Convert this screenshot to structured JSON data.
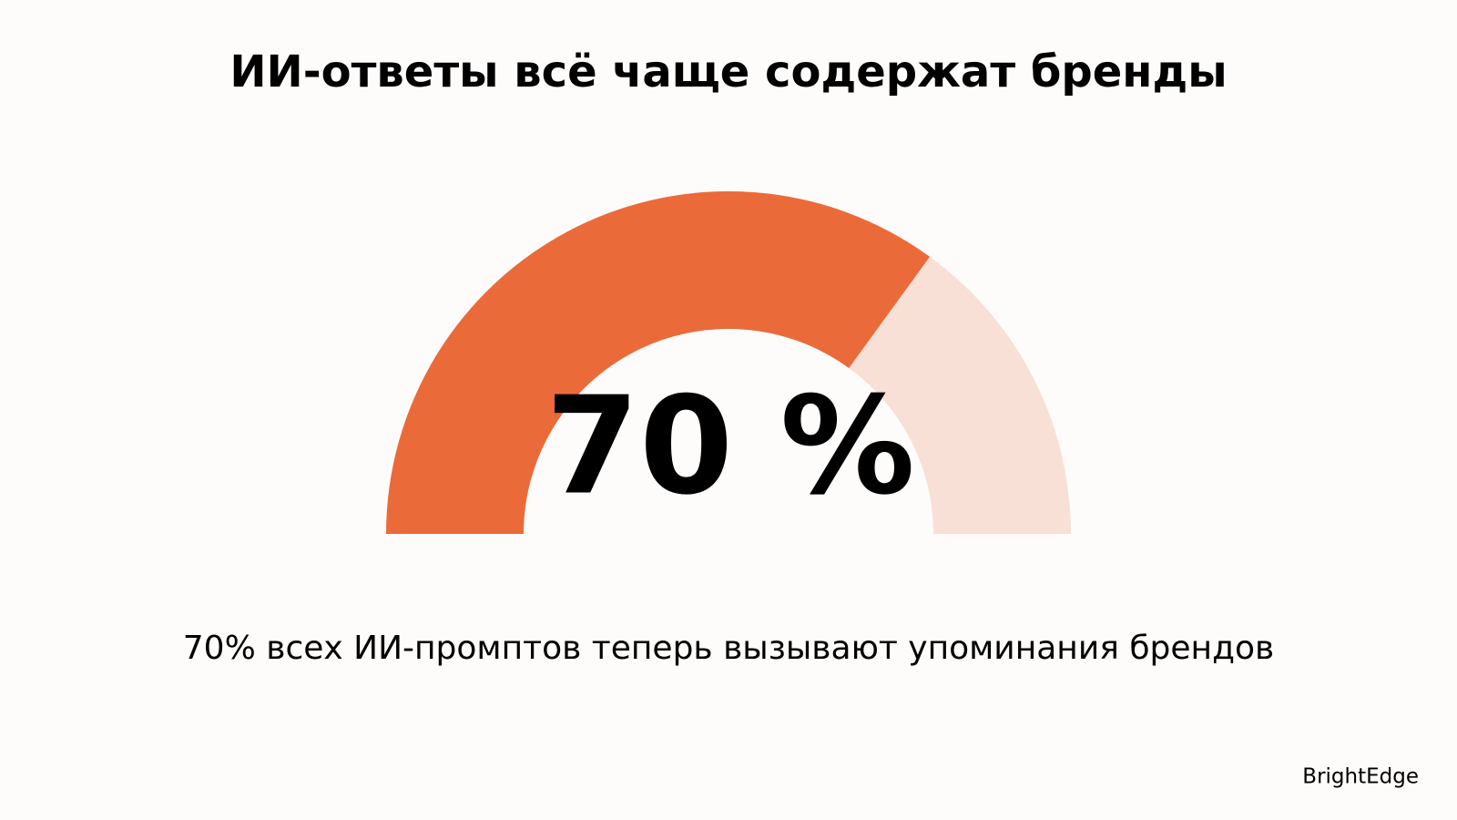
{
  "chart_data": {
    "type": "gauge",
    "title": "ИИ-ответы всё чаще содержат бренды",
    "value": 70,
    "value_label": "70 %",
    "range": [
      0,
      100
    ],
    "color": "#eb6a3a",
    "track_color": "#f9e0d6",
    "description": "70% всех ИИ-промптов теперь вызывают упоминания брендов",
    "source": "BrightEdge"
  }
}
